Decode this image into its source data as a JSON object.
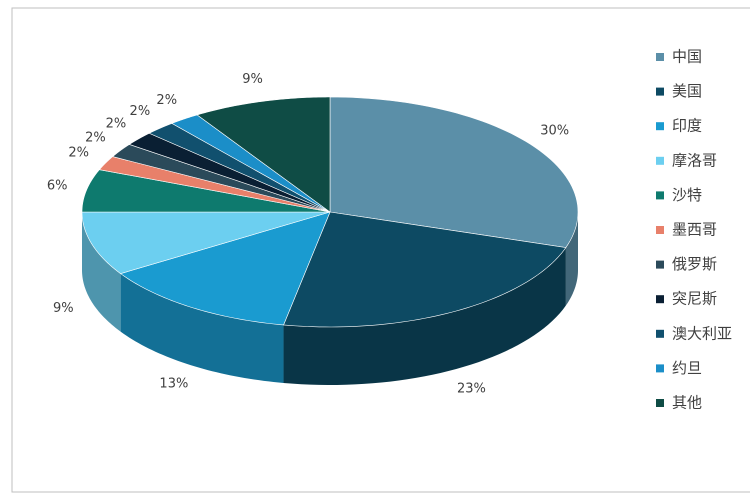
{
  "chart_data": {
    "type": "pie",
    "categories": [
      "中国",
      "美国",
      "印度",
      "摩洛哥",
      "沙特",
      "墨西哥",
      "俄罗斯",
      "突尼斯",
      "澳大利亚",
      "约旦",
      "其他"
    ],
    "values": [
      30,
      23,
      13,
      9,
      6,
      2,
      2,
      2,
      2,
      2,
      9
    ],
    "value_labels": [
      "30%",
      "23%",
      "13%",
      "9%",
      "6%",
      "2%",
      "2%",
      "2%",
      "2%",
      "2%",
      "9%"
    ],
    "colors": [
      "#5b8fa8",
      "#0d4a63",
      "#1a9bd0",
      "#6ccff0",
      "#0e7a6e",
      "#e8806a",
      "#2b4a5a",
      "#0a1f33",
      "#11506e",
      "#1b8ec8",
      "#0f4c45"
    ],
    "legend": "right"
  }
}
